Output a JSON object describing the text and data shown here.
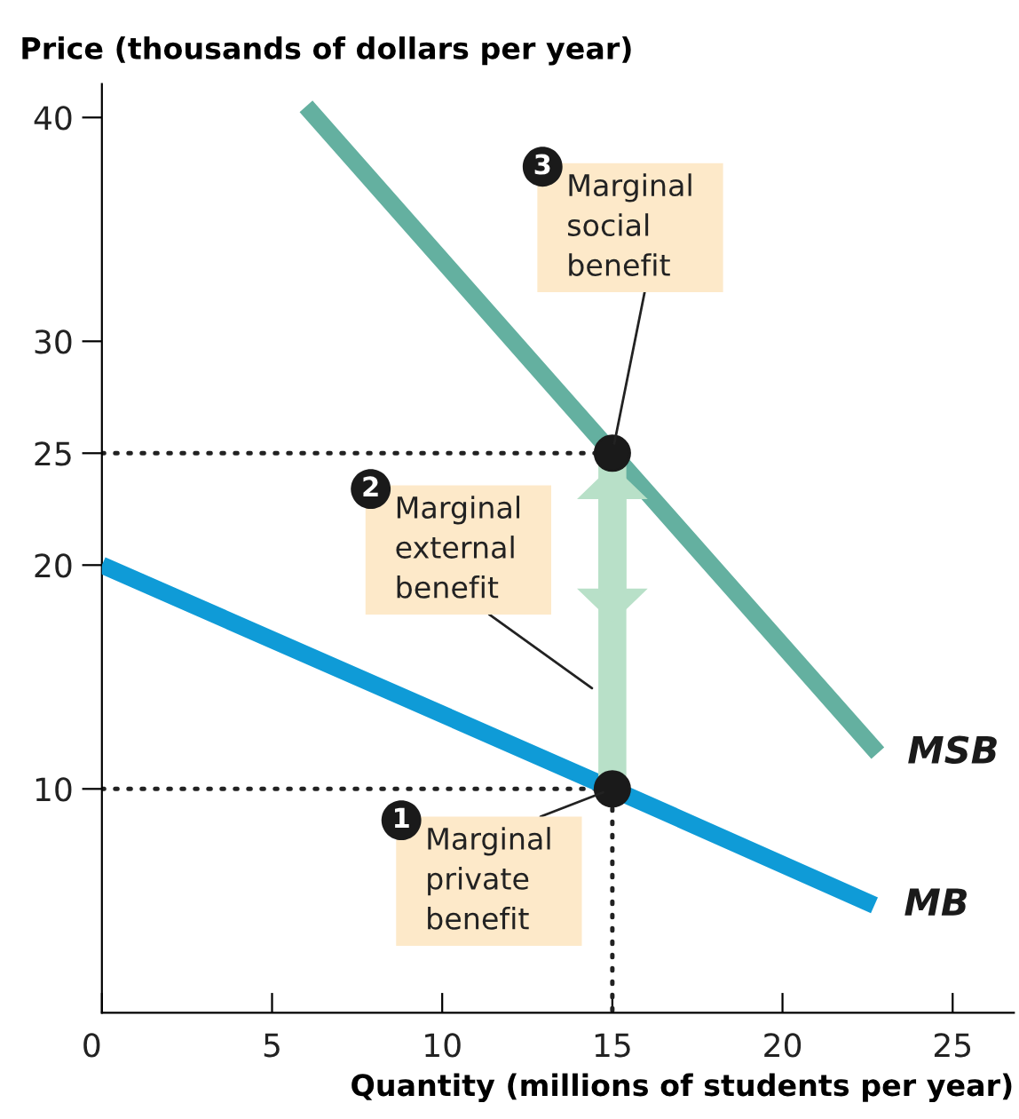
{
  "chart_data": {
    "type": "line",
    "xlabel": "Quantity (millions of students per year)",
    "ylabel": "Price (thousands of dollars per year)",
    "xlim": [
      0,
      26.8
    ],
    "ylim": [
      0,
      41.5
    ],
    "xticks": [
      0,
      5,
      10,
      15,
      20,
      25
    ],
    "yticks": [
      10,
      20,
      25,
      30,
      40
    ],
    "grid": false,
    "series": [
      {
        "name": "MSB",
        "color": "#64b0a0",
        "x": [
          6,
          15,
          22.8
        ],
        "values": [
          40.5,
          25,
          11.6
        ]
      },
      {
        "name": "MB",
        "color": "#0f9bd7",
        "x": [
          0,
          15,
          22.7
        ],
        "values": [
          20,
          10,
          4.8
        ]
      },
      {
        "type": "line",
        "color": "#222222",
        "line_style": "dotted",
        "x": [
          0,
          15,
          15
        ],
        "values": [
          25,
          25,
          0
        ]
      },
      {
        "type": "line",
        "color": "#222222",
        "line_style": "dotted",
        "x": [
          0,
          15
        ],
        "values": [
          10,
          10
        ]
      },
      {
        "type": "scatter",
        "color": "#1a1a1a",
        "marker": "circle",
        "x": [
          15,
          15
        ],
        "values": [
          25,
          10
        ]
      }
    ],
    "annotations": [
      {
        "text": "Marginal\nprivate\nbenefit",
        "x": 15,
        "y": 10
      },
      "Marginal\nexternal\nbenefit",
      {
        "text": "Marginal\nsocial\nbenefit",
        "x": 15,
        "y": 25
      },
      "1",
      "2",
      "3"
    ]
  }
}
